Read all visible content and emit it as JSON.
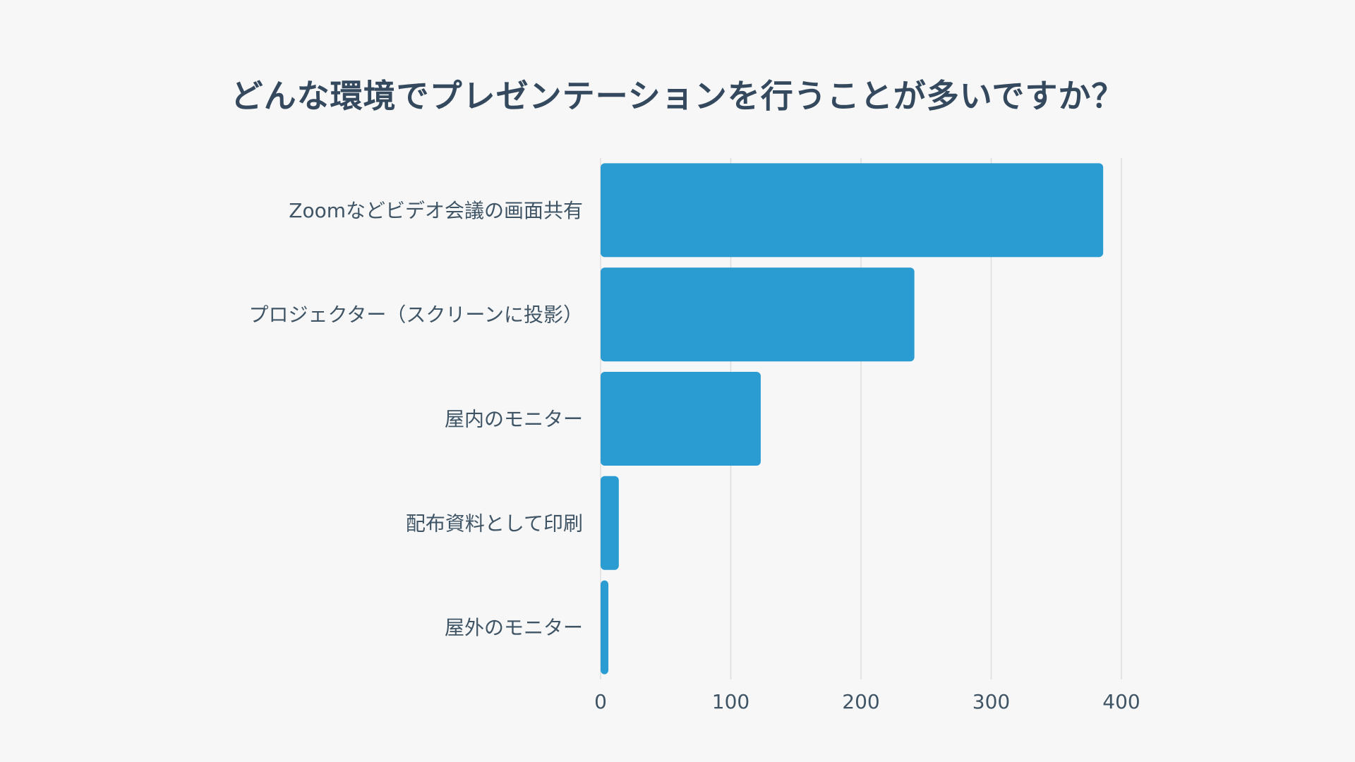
{
  "colors": {
    "background": "#f7f7f7",
    "bar": "#2b9cd1",
    "grid": "#dddddd",
    "text": "#3f5566",
    "title": "#34495e"
  },
  "chart_data": {
    "type": "bar",
    "orientation": "horizontal",
    "title": "どんな環境でプレゼンテーションを行うことが多いですか？",
    "categories": [
      "Zoomなどビデオ会議の画面共有",
      "プロジェクター（スクリーンに投影）",
      "屋内のモニター",
      "配布資料として印刷",
      "屋外のモニター"
    ],
    "values": [
      386,
      241,
      123,
      14,
      6
    ],
    "xlim": [
      0,
      400
    ],
    "xticks": [
      0,
      100,
      200,
      300,
      400
    ],
    "xlabel": "",
    "ylabel": "",
    "grid": "vertical"
  }
}
